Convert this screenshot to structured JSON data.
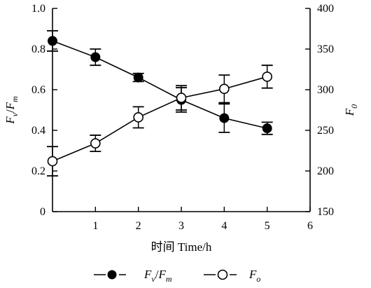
{
  "chart_data": {
    "type": "line",
    "xlabel": "时间 Time/h",
    "y_left_label": {
      "main": "F",
      "sub1": "v",
      "sep": "/",
      "main2": "F",
      "sub2": "m"
    },
    "y_right_label": {
      "main": "F",
      "sub": "0"
    },
    "x_ticks": [
      "1",
      "2",
      "3",
      "4",
      "5",
      "6"
    ],
    "y_left_ticks": [
      "1.0",
      "0.8",
      "0.6",
      "0.4",
      "0.2",
      "0"
    ],
    "y_right_ticks": [
      "400",
      "350",
      "300",
      "250",
      "200",
      "150"
    ],
    "xlim": [
      0,
      6
    ],
    "y_left_lim": [
      0,
      1.0
    ],
    "y_right_lim": [
      150,
      400
    ],
    "series": [
      {
        "name": "Fv/Fm",
        "label": {
          "main": "F",
          "sub1": "v",
          "sep": "/",
          "main2": "F",
          "sub2": "m"
        },
        "axis": "left",
        "marker": "filled-circle",
        "x": [
          0,
          1,
          2,
          3,
          4,
          5
        ],
        "y": [
          0.84,
          0.76,
          0.66,
          0.55,
          0.46,
          0.41
        ],
        "err": [
          0.05,
          0.04,
          0.02,
          0.06,
          0.07,
          0.03
        ]
      },
      {
        "name": "Fo",
        "label": {
          "main": "F",
          "sub": "o"
        },
        "axis": "right",
        "marker": "open-circle",
        "x": [
          0,
          1,
          2,
          3,
          4,
          5
        ],
        "y": [
          212,
          234,
          266,
          290,
          301,
          316
        ],
        "err": [
          18,
          10,
          13,
          15,
          17,
          14
        ]
      }
    ],
    "legend_position": "bottom-center",
    "grid": false
  }
}
